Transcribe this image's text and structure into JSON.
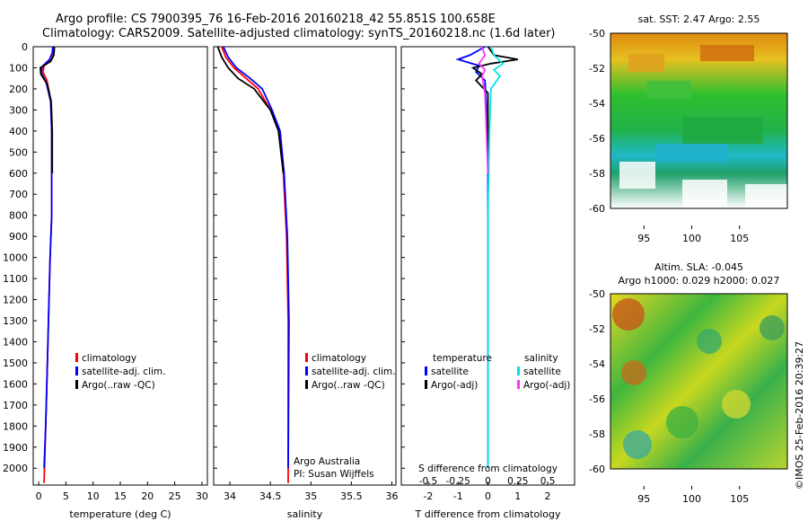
{
  "header": {
    "line1": "Argo profile: CS 7900395_76 16-Feb-2016 20160218_42 55.851S 100.658E",
    "line2": "Climatology: CARS2009. Satellite-adjusted climatology: synTS_20160218.nc (1.6d later)"
  },
  "colors": {
    "climatology": "#ff0000",
    "satellite": "#0000ff",
    "argo": "#000000",
    "sal_satellite": "#00e5e5",
    "sal_argo": "#ff33ff"
  },
  "chart_data": [
    {
      "type": "line",
      "id": "temperature",
      "xlabel": "temperature (deg C)",
      "ylabel": "",
      "xlim": [
        -1,
        31
      ],
      "ylim": [
        2080,
        0
      ],
      "xticks": [
        "0",
        "5",
        "10",
        "15",
        "20",
        "25",
        "30"
      ],
      "xtick_values": [
        0,
        5,
        10,
        15,
        20,
        25,
        30
      ],
      "yticks": [
        "0",
        "100",
        "200",
        "300",
        "400",
        "500",
        "600",
        "700",
        "800",
        "900",
        "1000",
        "1100",
        "1200",
        "1300",
        "1400",
        "1500",
        "1600",
        "1700",
        "1800",
        "1900",
        "2000"
      ],
      "ytick_values": [
        0,
        100,
        200,
        300,
        400,
        500,
        600,
        700,
        800,
        900,
        1000,
        1100,
        1200,
        1300,
        1400,
        1500,
        1600,
        1700,
        1800,
        1900,
        2000
      ],
      "legend": [
        "climatology",
        "satellite-adj. clim.",
        "Argo(..raw -QC)"
      ],
      "series": [
        {
          "name": "climatology",
          "color": "#ff0000",
          "points": [
            [
              2.9,
              0
            ],
            [
              2.8,
              30
            ],
            [
              2.4,
              60
            ],
            [
              1.0,
              90
            ],
            [
              0.8,
              120
            ],
            [
              1.5,
              160
            ],
            [
              2.2,
              250
            ],
            [
              2.4,
              400
            ],
            [
              2.4,
              800
            ],
            [
              2.1,
              1000
            ],
            [
              1.9,
              1200
            ],
            [
              1.6,
              1500
            ],
            [
              1.3,
              1800
            ],
            [
              1.0,
              2070
            ]
          ]
        },
        {
          "name": "satellite-adj. clim.",
          "color": "#0000ff",
          "points": [
            [
              2.6,
              0
            ],
            [
              2.5,
              30
            ],
            [
              2.0,
              60
            ],
            [
              0.6,
              95
            ],
            [
              0.5,
              125
            ],
            [
              1.4,
              170
            ],
            [
              2.2,
              260
            ],
            [
              2.4,
              400
            ],
            [
              2.4,
              800
            ],
            [
              2.1,
              1000
            ],
            [
              1.9,
              1200
            ],
            [
              1.6,
              1500
            ],
            [
              1.3,
              1800
            ],
            [
              1.0,
              2000
            ]
          ]
        },
        {
          "name": "Argo(..raw -QC)",
          "color": "#000000",
          "points": [
            [
              2.9,
              0
            ],
            [
              2.8,
              40
            ],
            [
              2.2,
              70
            ],
            [
              0.3,
              100
            ],
            [
              0.4,
              130
            ],
            [
              1.6,
              180
            ],
            [
              2.3,
              260
            ],
            [
              2.5,
              400
            ],
            [
              2.5,
              600
            ]
          ]
        }
      ]
    },
    {
      "type": "line",
      "id": "salinity",
      "xlabel": "salinity",
      "xlim": [
        33.8,
        36.05
      ],
      "ylim": [
        2080,
        0
      ],
      "xticks": [
        "34",
        "34.5",
        "35",
        "35.5",
        "36"
      ],
      "xtick_values": [
        34,
        34.5,
        35,
        35.5,
        36
      ],
      "legend": [
        "climatology",
        "satellite-adj. clim.",
        "Argo(..raw -QC)"
      ],
      "annotation": [
        "Argo Australia",
        "PI: Susan Wijffels"
      ],
      "series": [
        {
          "name": "climatology",
          "color": "#ff0000",
          "points": [
            [
              33.9,
              0
            ],
            [
              33.95,
              50
            ],
            [
              34.05,
              100
            ],
            [
              34.2,
              150
            ],
            [
              34.35,
              200
            ],
            [
              34.5,
              300
            ],
            [
              34.6,
              400
            ],
            [
              34.66,
              600
            ],
            [
              34.7,
              900
            ],
            [
              34.72,
              1300
            ],
            [
              34.72,
              2070
            ]
          ]
        },
        {
          "name": "satellite-adj. clim.",
          "color": "#0000ff",
          "points": [
            [
              33.92,
              0
            ],
            [
              33.98,
              50
            ],
            [
              34.08,
              100
            ],
            [
              34.25,
              150
            ],
            [
              34.4,
              200
            ],
            [
              34.52,
              300
            ],
            [
              34.62,
              400
            ],
            [
              34.67,
              600
            ],
            [
              34.71,
              900
            ],
            [
              34.73,
              1300
            ],
            [
              34.72,
              2000
            ]
          ]
        },
        {
          "name": "Argo(..raw -QC)",
          "color": "#000000",
          "points": [
            [
              33.85,
              0
            ],
            [
              33.9,
              50
            ],
            [
              33.98,
              100
            ],
            [
              34.1,
              150
            ],
            [
              34.3,
              200
            ],
            [
              34.5,
              300
            ],
            [
              34.6,
              400
            ],
            [
              34.66,
              600
            ]
          ]
        }
      ]
    },
    {
      "type": "line",
      "id": "difference",
      "xlabel": "T difference from climatology",
      "xlim": [
        -2.9,
        2.9
      ],
      "ylim": [
        2080,
        0
      ],
      "xticks": [
        "-2",
        "-1",
        "0",
        "1",
        "2"
      ],
      "xtick_values": [
        -2,
        -1,
        0,
        1,
        2
      ],
      "top_axis_label": "S difference from climatology",
      "top_ticks": [
        "-0.5",
        "-0.25",
        "0",
        "0.25",
        "0.5"
      ],
      "top_tick_values": [
        -2,
        -1,
        0,
        1,
        2
      ],
      "legend_headers": [
        "temperature",
        "salinity"
      ],
      "legend": [
        "satellite",
        "Argo(-adj)",
        "satellite",
        "Argo(-adj)"
      ],
      "series": [
        {
          "name": "temperature satellite",
          "color": "#0000ff",
          "points": [
            [
              -0.1,
              0
            ],
            [
              -0.6,
              40
            ],
            [
              -1.0,
              60
            ],
            [
              -0.3,
              90
            ],
            [
              -0.4,
              120
            ],
            [
              -0.1,
              160
            ],
            [
              -0.05,
              300
            ],
            [
              0,
              600
            ],
            [
              0,
              1000
            ],
            [
              0,
              1500
            ],
            [
              0,
              2000
            ]
          ]
        },
        {
          "name": "temperature Argo(-adj)",
          "color": "#000000",
          "points": [
            [
              0,
              0
            ],
            [
              0.2,
              40
            ],
            [
              1.0,
              60
            ],
            [
              0.1,
              80
            ],
            [
              -0.5,
              100
            ],
            [
              -0.2,
              130
            ],
            [
              -0.4,
              160
            ],
            [
              0,
              220
            ],
            [
              0,
              600
            ]
          ]
        },
        {
          "name": "salinity satellite",
          "color": "#00e5e5",
          "points": [
            [
              0.1,
              0
            ],
            [
              0.2,
              40
            ],
            [
              0.5,
              80
            ],
            [
              0.2,
              110
            ],
            [
              0.4,
              140
            ],
            [
              0.1,
              200
            ],
            [
              0.05,
              400
            ],
            [
              0,
              800
            ],
            [
              0,
              2000
            ]
          ]
        },
        {
          "name": "salinity Argo(-adj)",
          "color": "#ff33ff",
          "points": [
            [
              -0.2,
              0
            ],
            [
              -0.1,
              40
            ],
            [
              -0.3,
              80
            ],
            [
              -0.1,
              110
            ],
            [
              -0.2,
              140
            ],
            [
              -0.1,
              220
            ],
            [
              0,
              600
            ]
          ]
        }
      ]
    },
    {
      "type": "heatmap",
      "id": "sst_map",
      "title": "sat. SST: 2.47 Argo: 2.55",
      "xticks": [
        "95",
        "100",
        "105"
      ],
      "xtick_values": [
        95,
        100,
        105
      ],
      "yticks": [
        "-50",
        "-52",
        "-54",
        "-56",
        "-58",
        "-60"
      ],
      "ytick_values": [
        -50,
        -52,
        -54,
        -56,
        -58,
        -60
      ],
      "xlim": [
        91.5,
        110
      ],
      "ylim": [
        -60,
        -50
      ]
    },
    {
      "type": "heatmap",
      "id": "sla_map",
      "title": "Altim. SLA: -0.045",
      "subtitle": "Argo h1000: 0.029 h2000: 0.027",
      "xticks": [
        "95",
        "100",
        "105"
      ],
      "xtick_values": [
        95,
        100,
        105
      ],
      "yticks": [
        "-50",
        "-52",
        "-54",
        "-56",
        "-58",
        "-60"
      ],
      "ytick_values": [
        -50,
        -52,
        -54,
        -56,
        -58,
        -60
      ],
      "xlim": [
        91.5,
        110
      ],
      "ylim": [
        -60,
        -50
      ]
    }
  ],
  "credit": "©IMOS 25-Feb-2016 20:39:27"
}
